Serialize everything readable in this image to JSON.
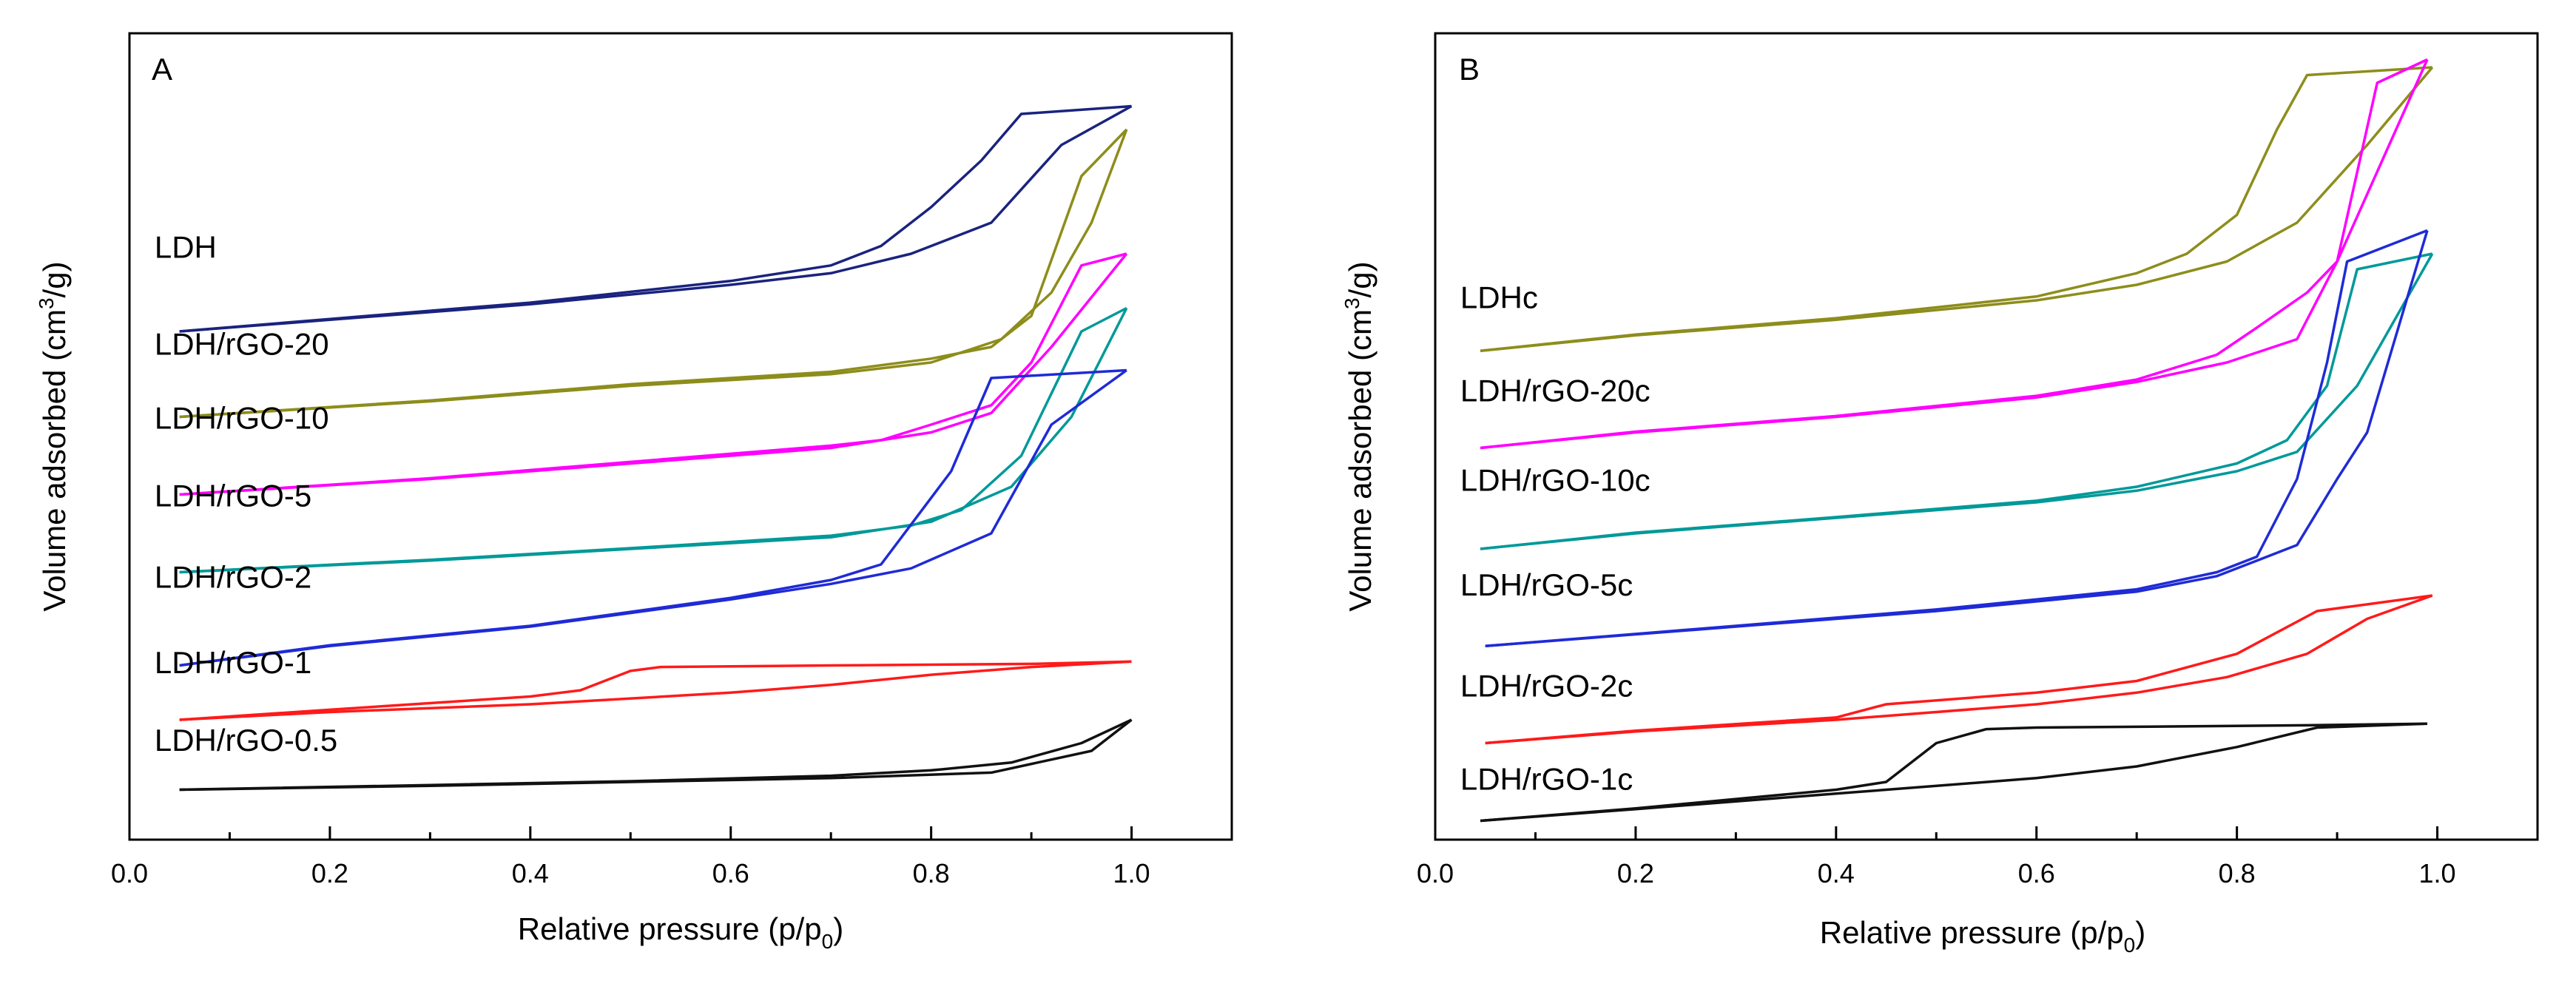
{
  "chart_data": [
    {
      "type": "line",
      "panel_label": "A",
      "xlabel": "Relative pressure (p/p",
      "xlabel_sub": "0",
      "xlabel_tail": ")",
      "ylabel": "Volume adsorbed (cm",
      "ylabel_sup": "3",
      "ylabel_tail": "/g)",
      "xlim": [
        0.0,
        1.1
      ],
      "ylim": [
        0,
        100
      ],
      "xticks": [
        "0.0",
        "0.2",
        "0.4",
        "0.6",
        "0.8",
        "1.0"
      ],
      "xtick_values": [
        0.0,
        0.2,
        0.4,
        0.6,
        0.8,
        1.0
      ],
      "series": [
        {
          "name": "LDH",
          "color": "#1a237e",
          "label_x": 0.025,
          "label_y": 73.5,
          "adsorption": [
            [
              0.05,
              64
            ],
            [
              0.2,
              65.5
            ],
            [
              0.4,
              67.5
            ],
            [
              0.6,
              70
            ],
            [
              0.7,
              71.5
            ],
            [
              0.78,
              74
            ],
            [
              0.86,
              78
            ],
            [
              0.93,
              88
            ],
            [
              1.0,
              93
            ]
          ],
          "desorption": [
            [
              1.0,
              93
            ],
            [
              0.89,
              92
            ],
            [
              0.85,
              86
            ],
            [
              0.8,
              80
            ],
            [
              0.75,
              75
            ],
            [
              0.7,
              72.5
            ],
            [
              0.6,
              70.5
            ],
            [
              0.4,
              67.7
            ],
            [
              0.2,
              65.6
            ],
            [
              0.05,
              64
            ]
          ]
        },
        {
          "name": "LDH/rGO-20",
          "color": "#8d8d1c",
          "label_x": 0.025,
          "label_y": 61,
          "adsorption": [
            [
              0.05,
              53
            ],
            [
              0.3,
              55
            ],
            [
              0.5,
              57
            ],
            [
              0.7,
              58.5
            ],
            [
              0.8,
              60
            ],
            [
              0.87,
              63
            ],
            [
              0.92,
              69
            ],
            [
              0.96,
              78
            ],
            [
              0.995,
              90
            ]
          ],
          "desorption": [
            [
              0.995,
              90
            ],
            [
              0.95,
              84
            ],
            [
              0.9,
              66
            ],
            [
              0.86,
              62
            ],
            [
              0.8,
              60.5
            ],
            [
              0.7,
              58.8
            ],
            [
              0.5,
              57.2
            ],
            [
              0.3,
              55.1
            ],
            [
              0.05,
              53
            ]
          ]
        },
        {
          "name": "LDH/rGO-10",
          "color": "#ff00ff",
          "label_x": 0.025,
          "label_y": 51.5,
          "adsorption": [
            [
              0.05,
              43
            ],
            [
              0.3,
              45
            ],
            [
              0.5,
              47
            ],
            [
              0.7,
              49
            ],
            [
              0.8,
              51
            ],
            [
              0.86,
              53.5
            ],
            [
              0.92,
              62
            ],
            [
              0.995,
              74
            ]
          ],
          "desorption": [
            [
              0.995,
              74
            ],
            [
              0.95,
              72.5
            ],
            [
              0.9,
              60
            ],
            [
              0.86,
              54.5
            ],
            [
              0.8,
              52
            ],
            [
              0.75,
              50
            ],
            [
              0.7,
              49.3
            ],
            [
              0.5,
              47.2
            ],
            [
              0.3,
              45.1
            ],
            [
              0.05,
              43
            ]
          ]
        },
        {
          "name": "LDH/rGO-5",
          "color": "#009999",
          "label_x": 0.025,
          "label_y": 41.5,
          "adsorption": [
            [
              0.05,
              33
            ],
            [
              0.3,
              34.5
            ],
            [
              0.5,
              36
            ],
            [
              0.7,
              37.5
            ],
            [
              0.8,
              39.5
            ],
            [
              0.88,
              44
            ],
            [
              0.94,
              53
            ],
            [
              0.995,
              67
            ]
          ],
          "desorption": [
            [
              0.995,
              67
            ],
            [
              0.95,
              64
            ],
            [
              0.89,
              48
            ],
            [
              0.83,
              41
            ],
            [
              0.78,
              39
            ],
            [
              0.7,
              37.7
            ],
            [
              0.5,
              36.1
            ],
            [
              0.3,
              34.6
            ],
            [
              0.05,
              33
            ]
          ]
        },
        {
          "name": "LDH/rGO-2",
          "color": "#1f2bd6",
          "label_x": 0.025,
          "label_y": 31,
          "adsorption": [
            [
              0.05,
              21
            ],
            [
              0.2,
              23.5
            ],
            [
              0.4,
              26
            ],
            [
              0.6,
              29.5
            ],
            [
              0.7,
              31.5
            ],
            [
              0.78,
              33.5
            ],
            [
              0.86,
              38
            ],
            [
              0.92,
              52
            ],
            [
              0.995,
              59
            ]
          ],
          "desorption": [
            [
              0.995,
              59
            ],
            [
              0.86,
              58
            ],
            [
              0.82,
              46
            ],
            [
              0.75,
              34
            ],
            [
              0.7,
              32
            ],
            [
              0.6,
              29.7
            ],
            [
              0.4,
              26.1
            ],
            [
              0.2,
              23.6
            ],
            [
              0.05,
              21
            ]
          ]
        },
        {
          "name": "LDH/rGO-1",
          "color": "#ff1a1a",
          "label_x": 0.025,
          "label_y": 20,
          "adsorption": [
            [
              0.05,
              14
            ],
            [
              0.2,
              15
            ],
            [
              0.4,
              16
            ],
            [
              0.6,
              17.5
            ],
            [
              0.7,
              18.5
            ],
            [
              0.8,
              19.8
            ],
            [
              0.9,
              20.8
            ],
            [
              1.0,
              21.5
            ]
          ],
          "desorption": [
            [
              1.0,
              21.5
            ],
            [
              0.9,
              21.2
            ],
            [
              0.7,
              21
            ],
            [
              0.53,
              20.8
            ],
            [
              0.5,
              20.3
            ],
            [
              0.45,
              17.8
            ],
            [
              0.4,
              17
            ],
            [
              0.2,
              15.3
            ],
            [
              0.05,
              14
            ]
          ]
        },
        {
          "name": "LDH/rGO-0.5",
          "color": "#111111",
          "label_x": 0.025,
          "label_y": 10,
          "adsorption": [
            [
              0.05,
              5
            ],
            [
              0.3,
              5.5
            ],
            [
              0.5,
              6
            ],
            [
              0.7,
              6.5
            ],
            [
              0.86,
              7.2
            ],
            [
              0.96,
              10
            ],
            [
              1.0,
              14
            ]
          ],
          "desorption": [
            [
              1.0,
              14
            ],
            [
              0.95,
              11
            ],
            [
              0.88,
              8.5
            ],
            [
              0.8,
              7.5
            ],
            [
              0.7,
              6.8
            ],
            [
              0.5,
              6.1
            ],
            [
              0.3,
              5.6
            ],
            [
              0.05,
              5
            ]
          ]
        }
      ]
    },
    {
      "type": "line",
      "panel_label": "B",
      "xlabel": "Relative pressure (p/p",
      "xlabel_sub": "0",
      "xlabel_tail": ")",
      "ylabel": "Volume adsorbed (cm",
      "ylabel_sup": "3",
      "ylabel_tail": "/g)",
      "xlim": [
        0.0,
        1.1
      ],
      "ylim": [
        0,
        100
      ],
      "xticks": [
        "0.0",
        "0.2",
        "0.4",
        "0.6",
        "0.8",
        "1.0"
      ],
      "xtick_values": [
        0.0,
        0.2,
        0.4,
        0.6,
        0.8,
        1.0
      ],
      "series": [
        {
          "name": "LDHc",
          "color": "#8d8d1c",
          "label_x": 0.025,
          "label_y": 67,
          "adsorption": [
            [
              0.045,
              61.5
            ],
            [
              0.2,
              63.5
            ],
            [
              0.4,
              65.5
            ],
            [
              0.6,
              68
            ],
            [
              0.7,
              70
            ],
            [
              0.79,
              73
            ],
            [
              0.86,
              78
            ],
            [
              0.93,
              88
            ],
            [
              0.995,
              98
            ]
          ],
          "desorption": [
            [
              0.995,
              98
            ],
            [
              0.87,
              97
            ],
            [
              0.84,
              90
            ],
            [
              0.8,
              79
            ],
            [
              0.75,
              74
            ],
            [
              0.7,
              71.5
            ],
            [
              0.6,
              68.5
            ],
            [
              0.4,
              65.7
            ],
            [
              0.2,
              63.6
            ],
            [
              0.045,
              61.5
            ]
          ]
        },
        {
          "name": "LDH/rGO-20c",
          "color": "#ff00ff",
          "label_x": 0.025,
          "label_y": 55,
          "adsorption": [
            [
              0.045,
              49
            ],
            [
              0.2,
              51
            ],
            [
              0.4,
              53
            ],
            [
              0.6,
              55.5
            ],
            [
              0.7,
              57.5
            ],
            [
              0.79,
              60
            ],
            [
              0.86,
              63
            ],
            [
              0.9,
              73
            ],
            [
              0.94,
              96
            ],
            [
              0.99,
              99
            ]
          ],
          "desorption": [
            [
              0.99,
              99
            ],
            [
              0.9,
              73
            ],
            [
              0.87,
              69
            ],
            [
              0.82,
              64.5
            ],
            [
              0.78,
              61
            ],
            [
              0.7,
              57.8
            ],
            [
              0.6,
              55.7
            ],
            [
              0.4,
              53.1
            ],
            [
              0.2,
              51.1
            ],
            [
              0.045,
              49
            ]
          ]
        },
        {
          "name": "LDH/rGO-10c",
          "color": "#009999",
          "label_x": 0.025,
          "label_y": 43.5,
          "adsorption": [
            [
              0.045,
              36
            ],
            [
              0.2,
              38
            ],
            [
              0.4,
              40
            ],
            [
              0.6,
              42
            ],
            [
              0.7,
              43.5
            ],
            [
              0.8,
              46
            ],
            [
              0.86,
              48.5
            ],
            [
              0.92,
              57
            ],
            [
              0.995,
              74
            ]
          ],
          "desorption": [
            [
              0.995,
              74
            ],
            [
              0.92,
              72
            ],
            [
              0.89,
              57
            ],
            [
              0.85,
              50
            ],
            [
              0.8,
              47
            ],
            [
              0.7,
              44
            ],
            [
              0.6,
              42.2
            ],
            [
              0.4,
              40.1
            ],
            [
              0.2,
              38.1
            ],
            [
              0.045,
              36
            ]
          ]
        },
        {
          "name": "LDH/rGO-5c",
          "color": "#1f2bd6",
          "label_x": 0.025,
          "label_y": 30,
          "adsorption": [
            [
              0.05,
              23.5
            ],
            [
              0.3,
              26
            ],
            [
              0.5,
              28
            ],
            [
              0.7,
              30.5
            ],
            [
              0.78,
              32.5
            ],
            [
              0.86,
              36.5
            ],
            [
              0.9,
              45
            ],
            [
              0.93,
              51
            ],
            [
              0.99,
              77
            ]
          ],
          "desorption": [
            [
              0.99,
              77
            ],
            [
              0.91,
              73
            ],
            [
              0.89,
              60
            ],
            [
              0.86,
              45
            ],
            [
              0.82,
              35
            ],
            [
              0.78,
              33
            ],
            [
              0.7,
              30.8
            ],
            [
              0.5,
              28.2
            ],
            [
              0.3,
              26.1
            ],
            [
              0.05,
              23.5
            ]
          ]
        },
        {
          "name": "LDH/rGO-2c",
          "color": "#ff1a1a",
          "label_x": 0.025,
          "label_y": 17,
          "adsorption": [
            [
              0.05,
              11
            ],
            [
              0.2,
              12.5
            ],
            [
              0.4,
              14
            ],
            [
              0.6,
              16
            ],
            [
              0.7,
              17.5
            ],
            [
              0.79,
              19.5
            ],
            [
              0.87,
              22.5
            ],
            [
              0.93,
              27
            ],
            [
              0.995,
              30
            ]
          ],
          "desorption": [
            [
              0.995,
              30
            ],
            [
              0.88,
              28
            ],
            [
              0.8,
              22.5
            ],
            [
              0.7,
              19
            ],
            [
              0.6,
              17.5
            ],
            [
              0.45,
              16
            ],
            [
              0.4,
              14.3
            ],
            [
              0.2,
              12.6
            ],
            [
              0.05,
              11
            ]
          ]
        },
        {
          "name": "LDH/rGO-1c",
          "color": "#111111",
          "label_x": 0.025,
          "label_y": 5,
          "adsorption": [
            [
              0.045,
              1
            ],
            [
              0.2,
              2.5
            ],
            [
              0.4,
              4.5
            ],
            [
              0.6,
              6.5
            ],
            [
              0.7,
              8
            ],
            [
              0.8,
              10.5
            ],
            [
              0.88,
              13
            ],
            [
              0.99,
              13.5
            ]
          ],
          "desorption": [
            [
              0.99,
              13.5
            ],
            [
              0.87,
              13.3
            ],
            [
              0.6,
              13
            ],
            [
              0.55,
              12.8
            ],
            [
              0.5,
              11
            ],
            [
              0.45,
              6
            ],
            [
              0.4,
              5
            ],
            [
              0.2,
              2.6
            ],
            [
              0.045,
              1
            ]
          ]
        }
      ]
    }
  ]
}
